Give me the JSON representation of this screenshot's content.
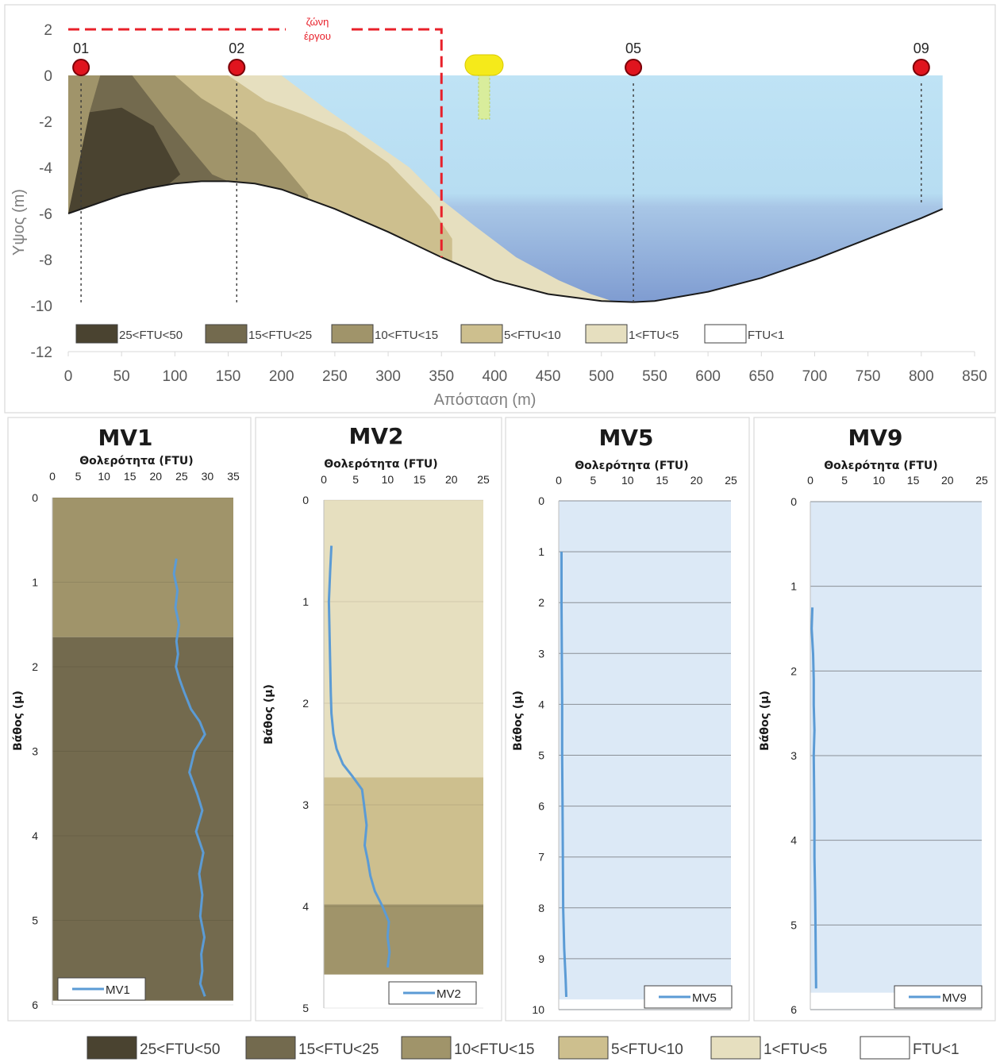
{
  "colors": {
    "c25_50": "#4a4330",
    "c15_25": "#736a4e",
    "c10_15": "#a0946a",
    "c5_10": "#cdbf8e",
    "c1_5": "#e6dfbf",
    "c0_1": "#ffffff",
    "water_top": "#bfe3f5",
    "water_bottom": "#7f9cd1",
    "seabed": "#1a1a1a",
    "zone": "#e8202a",
    "station": "#e0141e",
    "buoy": "#f5ea1a",
    "series_line": "#5b9bd5",
    "profile_water": "#dce9f6"
  },
  "legend_items": [
    {
      "label": "25<FTU<50",
      "color_key": "c25_50"
    },
    {
      "label": "15<FTU<25",
      "color_key": "c15_25"
    },
    {
      "label": "10<FTU<15",
      "color_key": "c10_15"
    },
    {
      "label": "5<FTU<10",
      "color_key": "c5_10"
    },
    {
      "label": "1<FTU<5",
      "color_key": "c1_5"
    },
    {
      "label": "FTU<1",
      "color_key": "c0_1"
    }
  ],
  "chart_data": [
    {
      "type": "area",
      "xlabel": "Απόσταση (m)",
      "ylabel": "Υψος (m)",
      "xlim": [
        0,
        850
      ],
      "ylim": [
        -12,
        2
      ],
      "xticks": [
        0,
        50,
        100,
        150,
        200,
        250,
        300,
        350,
        400,
        450,
        500,
        550,
        600,
        650,
        700,
        750,
        800,
        850
      ],
      "yticks": [
        2,
        0,
        -2,
        -4,
        -6,
        -8,
        -10,
        -12
      ],
      "zone": {
        "label_line1": "ζώνη",
        "label_line2": "έργου",
        "x_end": 350,
        "y_top": 2
      },
      "buoy_x": 390,
      "seabed": {
        "x": [
          0,
          25,
          50,
          75,
          100,
          125,
          150,
          175,
          200,
          250,
          300,
          350,
          400,
          450,
          500,
          530,
          550,
          600,
          650,
          700,
          750,
          800,
          820
        ],
        "y": [
          -6.0,
          -5.6,
          -5.2,
          -4.9,
          -4.7,
          -4.6,
          -4.6,
          -4.7,
          -4.95,
          -5.8,
          -6.8,
          -7.9,
          -8.9,
          -9.5,
          -9.8,
          -9.85,
          -9.8,
          -9.4,
          -8.8,
          -8.0,
          -7.1,
          -6.2,
          -5.8
        ]
      },
      "zone_boundaries": {
        "b25_50": {
          "x": [
            0,
            20,
            50,
            80,
            105,
            95
          ],
          "y": [
            -6.0,
            -1.6,
            -1.4,
            -2.2,
            -4.3,
            -4.7
          ]
        },
        "b15_25": {
          "x": [
            0,
            20,
            30,
            60,
            90,
            115,
            135,
            150
          ],
          "y": [
            -6.0,
            -1.6,
            0,
            0,
            -1.8,
            -3.2,
            -4.3,
            -4.6
          ]
        },
        "b10_15": {
          "x": [
            100,
            125,
            150,
            175,
            200,
            225
          ],
          "y": [
            0,
            -1.0,
            -1.7,
            -2.5,
            -3.8,
            -5.2
          ]
        },
        "b5_10": {
          "x": [
            150,
            185,
            220,
            260,
            300,
            340,
            360
          ],
          "y": [
            0,
            -1.1,
            -1.7,
            -2.5,
            -3.8,
            -5.7,
            -7.1
          ]
        },
        "b1_5": {
          "x": [
            200,
            240,
            280,
            320,
            350,
            380,
            420,
            460,
            490,
            510
          ],
          "y": [
            0,
            -1.4,
            -2.7,
            -4.0,
            -5.4,
            -6.5,
            -7.9,
            -8.9,
            -9.5,
            -9.8
          ]
        }
      },
      "stations": [
        {
          "label": "01",
          "x": 12,
          "y": -10
        },
        {
          "label": "02",
          "x": 158,
          "y": -10
        },
        {
          "label": "05",
          "x": 530,
          "y": -10
        },
        {
          "label": "09",
          "x": 800,
          "y": -5.6
        }
      ]
    },
    {
      "type": "line",
      "title": "MV1",
      "xlabel": "Θολερότητα (FTU)",
      "ylabel": "Βάθος (μ)",
      "xlim": [
        0,
        35
      ],
      "xticks": [
        0,
        5,
        10,
        15,
        20,
        25,
        30,
        35
      ],
      "ylim": [
        0,
        6
      ],
      "yticks": [
        0,
        1,
        2,
        3,
        4,
        5,
        6
      ],
      "bands": [
        {
          "from": 0,
          "to": 1.65,
          "color_key": "c10_15"
        },
        {
          "from": 1.65,
          "to": 5.95,
          "color_key": "c15_25"
        }
      ],
      "series": [
        {
          "name": "MV1",
          "x": [
            24,
            23.5,
            24.2,
            23.8,
            24.5,
            24.0,
            24.3,
            23.9,
            24.6,
            25.5,
            26.8,
            28.5,
            29.5,
            27.5,
            26.5,
            28.0,
            29.0,
            27.8,
            29.2,
            28.4,
            29.0,
            28.6,
            29.4,
            28.8,
            29.0,
            28.6,
            29.5
          ],
          "y": [
            0.72,
            0.9,
            1.1,
            1.3,
            1.5,
            1.7,
            1.85,
            2.0,
            2.15,
            2.3,
            2.5,
            2.65,
            2.8,
            3.0,
            3.25,
            3.5,
            3.7,
            3.95,
            4.2,
            4.45,
            4.7,
            4.95,
            5.2,
            5.4,
            5.6,
            5.75,
            5.9
          ]
        }
      ]
    },
    {
      "type": "line",
      "title": "MV2",
      "xlabel": "Θολερότητα (FTU)",
      "ylabel": "Βάθος (μ)",
      "xlim": [
        0,
        25
      ],
      "xticks": [
        0,
        5,
        10,
        15,
        20,
        25
      ],
      "ylim": [
        0,
        5
      ],
      "yticks": [
        0,
        1,
        2,
        3,
        4,
        5
      ],
      "bands": [
        {
          "from": 0,
          "to": 2.73,
          "color_key": "c1_5"
        },
        {
          "from": 2.73,
          "to": 3.98,
          "color_key": "c5_10"
        },
        {
          "from": 3.98,
          "to": 4.67,
          "color_key": "c10_15"
        }
      ],
      "series": [
        {
          "name": "MV2",
          "x": [
            1.2,
            1.0,
            0.8,
            0.9,
            1.0,
            1.1,
            1.2,
            1.5,
            2.0,
            3.0,
            4.5,
            6.0,
            6.3,
            6.7,
            6.4,
            6.9,
            7.3,
            8.0,
            9.2,
            10.2,
            10.0,
            10.3,
            10.0
          ],
          "y": [
            0.45,
            0.7,
            1.0,
            1.3,
            1.6,
            1.9,
            2.1,
            2.3,
            2.45,
            2.6,
            2.72,
            2.85,
            3.0,
            3.2,
            3.4,
            3.55,
            3.7,
            3.85,
            4.0,
            4.15,
            4.3,
            4.45,
            4.6
          ]
        }
      ]
    },
    {
      "type": "line",
      "title": "MV5",
      "xlabel": "Θολερότητα (FTU)",
      "ylabel": "Βάθος (μ)",
      "xlim": [
        0,
        25
      ],
      "xticks": [
        0,
        5,
        10,
        15,
        20,
        25
      ],
      "ylim": [
        0,
        10
      ],
      "yticks": [
        0,
        1,
        2,
        3,
        4,
        5,
        6,
        7,
        8,
        9,
        10
      ],
      "bands": [
        {
          "from": 0,
          "to": 9.8,
          "color_key": "c0_1"
        }
      ],
      "series": [
        {
          "name": "MV5",
          "x": [
            0.4,
            0.4,
            0.45,
            0.5,
            0.5,
            0.55,
            0.6,
            0.65,
            0.8,
            1.0,
            1.1
          ],
          "y": [
            1.0,
            2.0,
            3.0,
            4.0,
            5.0,
            6.0,
            7.0,
            8.0,
            8.8,
            9.4,
            9.75
          ]
        }
      ]
    },
    {
      "type": "line",
      "title": "MV9",
      "xlabel": "Θολερότητα (FTU)",
      "ylabel": "Βάθος (μ)",
      "xlim": [
        0,
        25
      ],
      "xticks": [
        0,
        5,
        10,
        15,
        20,
        25
      ],
      "ylim": [
        0,
        6
      ],
      "yticks": [
        0,
        1,
        2,
        3,
        4,
        5,
        6
      ],
      "bands": [
        {
          "from": 0,
          "to": 5.8,
          "color_key": "c0_1"
        }
      ],
      "series": [
        {
          "name": "MV9",
          "x": [
            0.3,
            0.2,
            0.4,
            0.5,
            0.5,
            0.6,
            0.5,
            0.55,
            0.6,
            0.6,
            0.7,
            0.75,
            0.8,
            0.85
          ],
          "y": [
            1.25,
            1.5,
            1.8,
            2.1,
            2.4,
            2.7,
            3.0,
            3.4,
            3.8,
            4.2,
            4.6,
            5.0,
            5.4,
            5.75
          ]
        }
      ]
    }
  ]
}
